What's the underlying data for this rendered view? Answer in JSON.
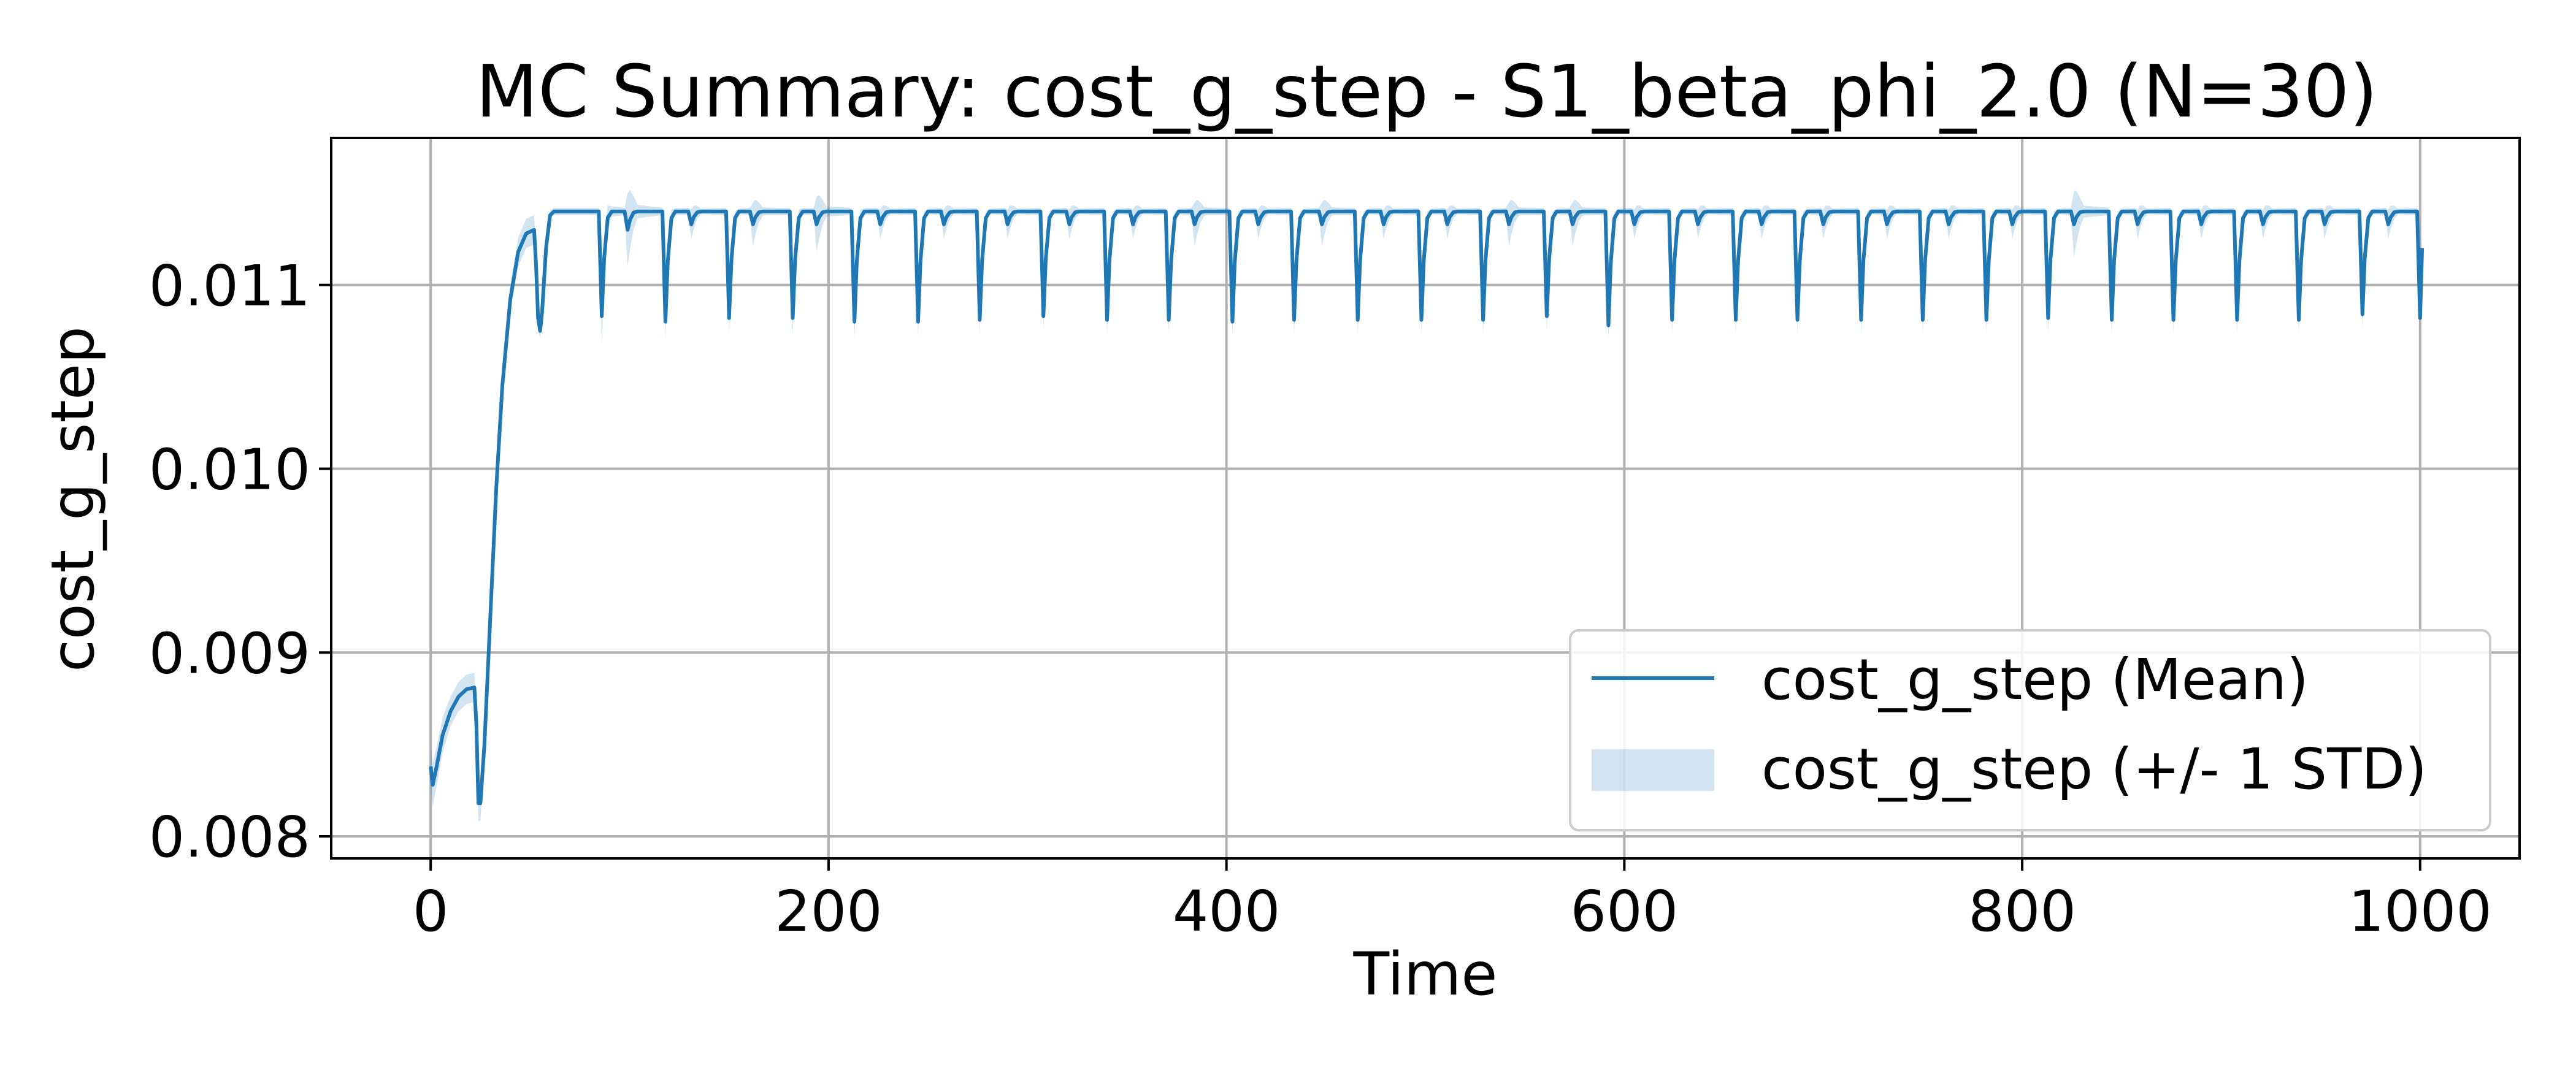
{
  "chart_data": {
    "type": "line",
    "title": "MC Summary: cost_g_step - S1_beta_phi_2.0 (N=30)",
    "xlabel": "Time",
    "ylabel": "cost_g_step",
    "xlim": [
      -50,
      1050
    ],
    "ylim": [
      0.00788,
      0.0118
    ],
    "xticks": [
      0,
      200,
      400,
      600,
      800,
      1000
    ],
    "xtick_labels": [
      "0",
      "200",
      "400",
      "600",
      "800",
      "1000"
    ],
    "yticks": [
      0.008,
      0.009,
      0.01,
      0.011
    ],
    "ytick_labels": [
      "0.008",
      "0.009",
      "0.010",
      "0.011"
    ],
    "grid": true,
    "legend_position": "lower-right",
    "colors": {
      "mean": "#1f77b4",
      "band": "#1f77b4"
    },
    "series": [
      {
        "name": "cost_g_step (Mean)",
        "kind": "line",
        "color": "#1f77b4"
      },
      {
        "name": "cost_g_step (+/- 1 STD)",
        "kind": "band",
        "color": "#1f77b4",
        "alpha": 0.2
      }
    ],
    "baseline": 0.0114,
    "startup_points": [
      [
        0,
        0.00838
      ],
      [
        1,
        0.00828
      ],
      [
        3,
        0.00838
      ],
      [
        6,
        0.00855
      ],
      [
        10,
        0.00868
      ],
      [
        14,
        0.00876
      ],
      [
        18,
        0.0088
      ],
      [
        22,
        0.00881
      ],
      [
        23,
        0.0086
      ],
      [
        24,
        0.00818
      ],
      [
        25,
        0.00818
      ],
      [
        27,
        0.0085
      ],
      [
        30,
        0.0092
      ],
      [
        33,
        0.0099
      ],
      [
        36,
        0.01045
      ],
      [
        40,
        0.01092
      ],
      [
        44,
        0.01118
      ],
      [
        48,
        0.01128
      ],
      [
        52,
        0.0113
      ],
      [
        53,
        0.0111
      ],
      [
        54,
        0.01082
      ],
      [
        55,
        0.01075
      ],
      [
        56,
        0.01085
      ],
      [
        58,
        0.0112
      ],
      [
        60,
        0.01138
      ],
      [
        62,
        0.0114
      ]
    ],
    "startup_std": [
      [
        0,
        0.00012
      ],
      [
        10,
        8e-05
      ],
      [
        22,
        8e-05
      ],
      [
        24,
        0.0001
      ],
      [
        30,
        5e-05
      ],
      [
        44,
        8e-05
      ],
      [
        52,
        8e-05
      ],
      [
        55,
        4e-05
      ],
      [
        62,
        2e-05
      ]
    ],
    "dip_events": [
      {
        "t": 86,
        "min": 0.01083,
        "std": 0.00015
      },
      {
        "t": 99,
        "min": 0.0113,
        "std": 0.0002
      },
      {
        "t": 118,
        "min": 0.0108,
        "std": 0.0001
      },
      {
        "t": 131,
        "min": 0.01133,
        "std": 8e-05
      },
      {
        "t": 150,
        "min": 0.01082,
        "std": 8e-05
      },
      {
        "t": 162,
        "min": 0.01133,
        "std": 0.00012
      },
      {
        "t": 182,
        "min": 0.01082,
        "std": 0.0001
      },
      {
        "t": 194,
        "min": 0.01133,
        "std": 0.00015
      },
      {
        "t": 213,
        "min": 0.0108,
        "std": 0.0001
      },
      {
        "t": 226,
        "min": 0.01133,
        "std": 8e-05
      },
      {
        "t": 245,
        "min": 0.0108,
        "std": 8e-05
      },
      {
        "t": 258,
        "min": 0.01133,
        "std": 8e-05
      },
      {
        "t": 276,
        "min": 0.01081,
        "std": 8e-05
      },
      {
        "t": 290,
        "min": 0.01133,
        "std": 8e-05
      },
      {
        "t": 308,
        "min": 0.01083,
        "std": 8e-05
      },
      {
        "t": 321,
        "min": 0.01133,
        "std": 8e-05
      },
      {
        "t": 340,
        "min": 0.01081,
        "std": 8e-05
      },
      {
        "t": 353,
        "min": 0.01133,
        "std": 8e-05
      },
      {
        "t": 371,
        "min": 0.01081,
        "std": 8e-05
      },
      {
        "t": 384,
        "min": 0.01133,
        "std": 0.00012
      },
      {
        "t": 403,
        "min": 0.0108,
        "std": 8e-05
      },
      {
        "t": 416,
        "min": 0.01133,
        "std": 8e-05
      },
      {
        "t": 434,
        "min": 0.01081,
        "std": 8e-05
      },
      {
        "t": 448,
        "min": 0.01133,
        "std": 0.00012
      },
      {
        "t": 466,
        "min": 0.01081,
        "std": 8e-05
      },
      {
        "t": 479,
        "min": 0.01133,
        "std": 8e-05
      },
      {
        "t": 498,
        "min": 0.01081,
        "std": 8e-05
      },
      {
        "t": 511,
        "min": 0.01133,
        "std": 8e-05
      },
      {
        "t": 529,
        "min": 0.01081,
        "std": 8e-05
      },
      {
        "t": 542,
        "min": 0.01133,
        "std": 0.00012
      },
      {
        "t": 561,
        "min": 0.01083,
        "std": 8e-05
      },
      {
        "t": 574,
        "min": 0.01133,
        "std": 0.00012
      },
      {
        "t": 592,
        "min": 0.01078,
        "std": 8e-05
      },
      {
        "t": 605,
        "min": 0.01133,
        "std": 8e-05
      },
      {
        "t": 624,
        "min": 0.01081,
        "std": 8e-05
      },
      {
        "t": 637,
        "min": 0.01133,
        "std": 8e-05
      },
      {
        "t": 656,
        "min": 0.01081,
        "std": 8e-05
      },
      {
        "t": 669,
        "min": 0.01133,
        "std": 8e-05
      },
      {
        "t": 687,
        "min": 0.01081,
        "std": 8e-05
      },
      {
        "t": 700,
        "min": 0.01133,
        "std": 8e-05
      },
      {
        "t": 719,
        "min": 0.01081,
        "std": 8e-05
      },
      {
        "t": 732,
        "min": 0.01133,
        "std": 8e-05
      },
      {
        "t": 750,
        "min": 0.01081,
        "std": 8e-05
      },
      {
        "t": 763,
        "min": 0.01133,
        "std": 8e-05
      },
      {
        "t": 782,
        "min": 0.01081,
        "std": 8e-05
      },
      {
        "t": 795,
        "min": 0.01133,
        "std": 8e-05
      },
      {
        "t": 813,
        "min": 0.01082,
        "std": 8e-05
      },
      {
        "t": 826,
        "min": 0.01133,
        "std": 0.00018
      },
      {
        "t": 845,
        "min": 0.01081,
        "std": 8e-05
      },
      {
        "t": 858,
        "min": 0.01133,
        "std": 8e-05
      },
      {
        "t": 876,
        "min": 0.01081,
        "std": 8e-05
      },
      {
        "t": 890,
        "min": 0.01133,
        "std": 8e-05
      },
      {
        "t": 908,
        "min": 0.01081,
        "std": 8e-05
      },
      {
        "t": 921,
        "min": 0.01133,
        "std": 8e-05
      },
      {
        "t": 939,
        "min": 0.01081,
        "std": 8e-05
      },
      {
        "t": 952,
        "min": 0.01133,
        "std": 8e-05
      },
      {
        "t": 971,
        "min": 0.01084,
        "std": 8e-05
      },
      {
        "t": 984,
        "min": 0.01133,
        "std": 8e-05
      }
    ],
    "end_point": [
      1000,
      0.01082
    ],
    "end_hook": [
      1001,
      0.0112
    ]
  },
  "legend": {
    "mean_label": "cost_g_step (Mean)",
    "std_label": "cost_g_step (+/- 1 STD)"
  }
}
